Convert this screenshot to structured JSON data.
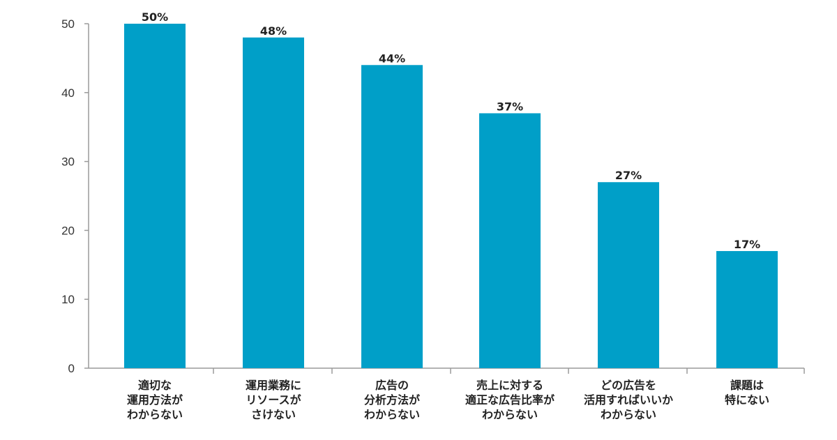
{
  "chart_data": {
    "type": "bar",
    "title": "",
    "xlabel": "",
    "ylabel": "",
    "ylim": [
      0,
      50
    ],
    "yticks": [
      0,
      10,
      20,
      30,
      40,
      50
    ],
    "grid": false,
    "legend": "none",
    "categories": [
      [
        "適切な",
        "運用方法が",
        "わからない"
      ],
      [
        "運用業務に",
        "リソースが",
        "さけない"
      ],
      [
        "広告の",
        "分析方法が",
        "わからない"
      ],
      [
        "売上に対する",
        "適正な広告比率が",
        "わからない"
      ],
      [
        "どの広告を",
        "活用すればいいか",
        "わからない"
      ],
      [
        "課題は",
        "特にない"
      ]
    ],
    "values": [
      50,
      48,
      44,
      37,
      27,
      17
    ],
    "data_labels": [
      "50%",
      "48%",
      "44%",
      "37%",
      "27%",
      "17%"
    ],
    "bar_color": "#009fc8",
    "axis_color": "#9a9a9a"
  }
}
